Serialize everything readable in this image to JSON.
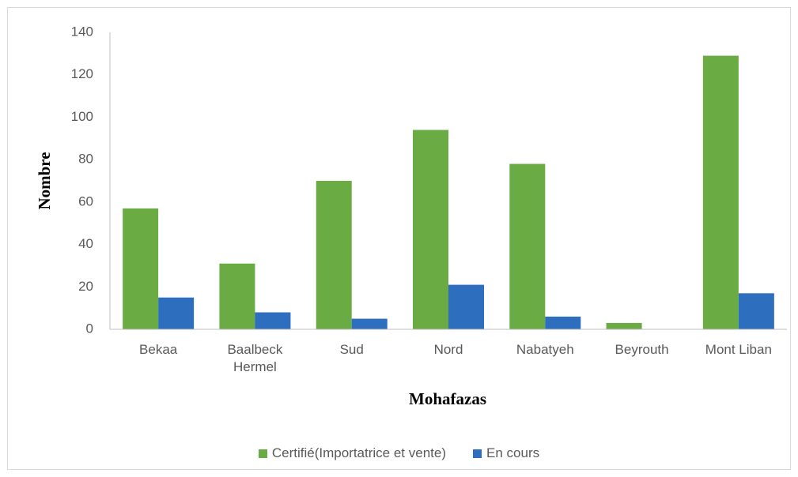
{
  "chart_data": {
    "type": "bar",
    "xlabel": "Mohafazas",
    "ylabel": "Nombre",
    "categories": [
      "Bekaa",
      "Baalbeck Hermel",
      "Sud",
      "Nord",
      "Nabatyeh",
      "Beyrouth",
      "Mont Liban"
    ],
    "series": [
      {
        "name": "Certifié(Importatrice et vente)",
        "color": "#6aab44",
        "values": [
          57,
          31,
          70,
          94,
          78,
          3,
          129
        ]
      },
      {
        "name": "En cours",
        "color": "#2e6ebf",
        "values": [
          15,
          8,
          5,
          21,
          6,
          0,
          17
        ]
      }
    ],
    "ylim": [
      0,
      140
    ],
    "yticks": [
      0,
      20,
      40,
      60,
      80,
      100,
      120,
      140
    ],
    "grid": false,
    "legend": "bottom"
  }
}
